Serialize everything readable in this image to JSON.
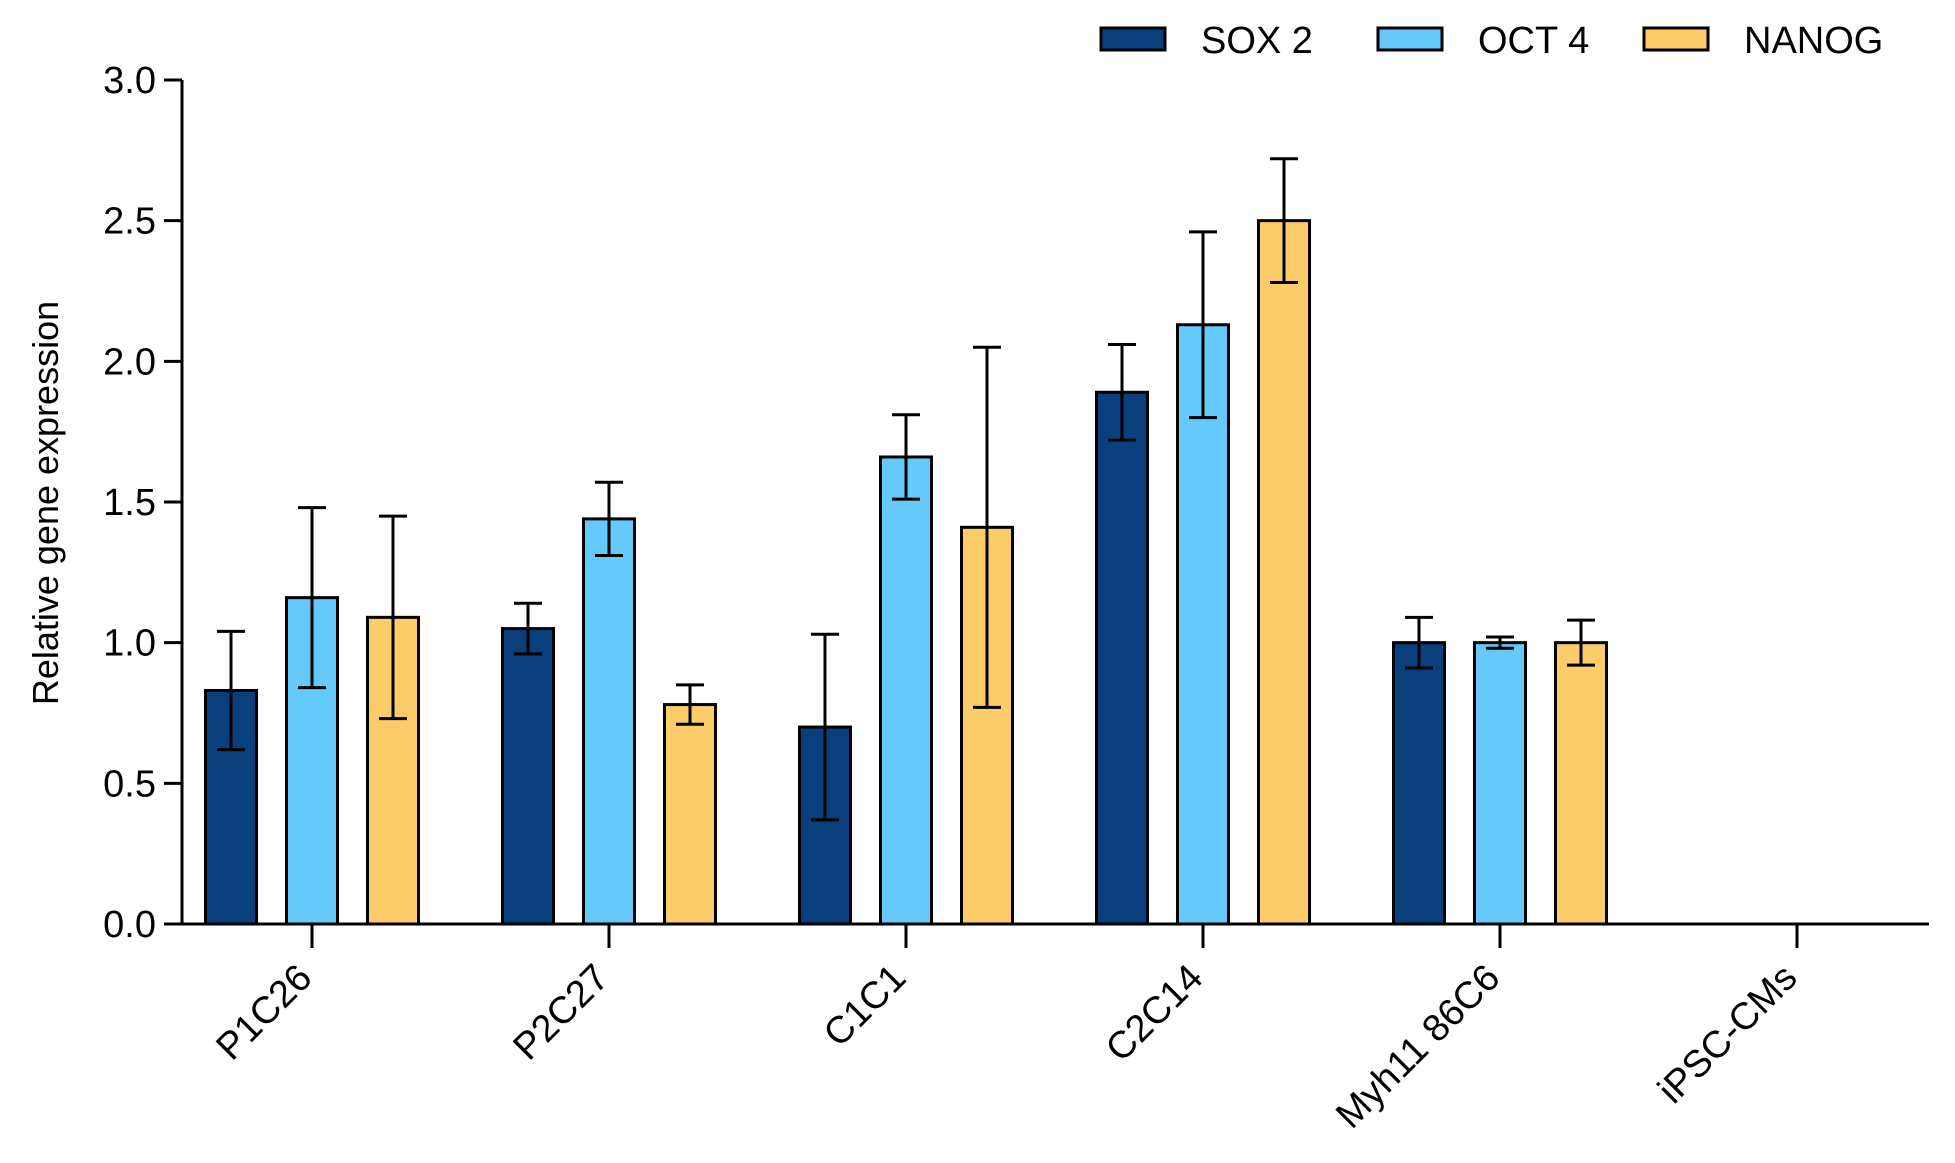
{
  "chart_data": {
    "type": "bar",
    "ylabel": "Relative gene expression",
    "xlabel": "",
    "ylim": [
      0,
      3.0
    ],
    "yticks": [
      "0.0",
      "0.5",
      "1.0",
      "1.5",
      "2.0",
      "2.5",
      "3.0"
    ],
    "categories": [
      "P1C26",
      "P2C27",
      "C1C1",
      "C2C14",
      "Myh11 86C6",
      "iPSC-CMs"
    ],
    "series": [
      {
        "name": "SOX 2",
        "color": "#0a3f7d",
        "values": [
          0.83,
          1.05,
          0.7,
          1.89,
          1.0,
          null
        ],
        "error": [
          0.21,
          0.09,
          0.33,
          0.17,
          0.09,
          null
        ]
      },
      {
        "name": "OCT 4",
        "color": "#66c9fb",
        "values": [
          1.16,
          1.44,
          1.66,
          2.13,
          1.0,
          null
        ],
        "error": [
          0.32,
          0.13,
          0.15,
          0.33,
          0.02,
          null
        ]
      },
      {
        "name": "NANOG",
        "color": "#fccc6a",
        "values": [
          1.09,
          0.78,
          1.41,
          2.5,
          1.0,
          null
        ],
        "error": [
          0.36,
          0.07,
          0.64,
          0.22,
          0.08,
          null
        ]
      }
    ],
    "legend_position": "top-right",
    "grid": false
  }
}
